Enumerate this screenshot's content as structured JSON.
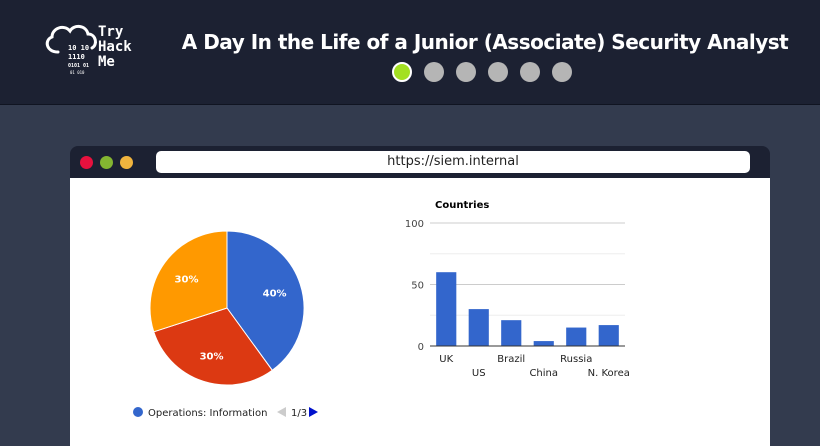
{
  "header": {
    "logo_lines": [
      "Try",
      "Hack",
      "Me"
    ],
    "logo_binary": [
      "10 10",
      "1110",
      "0101 01",
      "01 010"
    ],
    "title": "A Day In the Life of a Junior (Associate) Security Analyst",
    "steps": [
      {
        "active": true
      },
      {
        "active": false
      },
      {
        "active": false
      },
      {
        "active": false
      },
      {
        "active": false
      },
      {
        "active": false
      }
    ]
  },
  "browser": {
    "url": "https://siem.internal",
    "window_dots": [
      "#e8113e",
      "#84b531",
      "#f0b43e"
    ]
  },
  "pie_chart": {
    "slices": [
      {
        "label": "40%",
        "value": 40,
        "color": "#3366cc"
      },
      {
        "label": "30%",
        "value": 30,
        "color": "#dc3912"
      },
      {
        "label": "30%",
        "value": 30,
        "color": "#ff9900"
      }
    ],
    "legend_label": "Operations: Information",
    "legend_color": "#3366cc",
    "pager": "1/3"
  },
  "chart_data": {
    "type": "bar",
    "title": "Countries",
    "categories": [
      "UK",
      "US",
      "Brazil",
      "China",
      "Russia",
      "N. Korea"
    ],
    "values": [
      60,
      30,
      21,
      4,
      15,
      17
    ],
    "ylim": [
      0,
      100
    ],
    "yticks": [
      0,
      50,
      100
    ],
    "color": "#3366cc",
    "grid": true
  }
}
